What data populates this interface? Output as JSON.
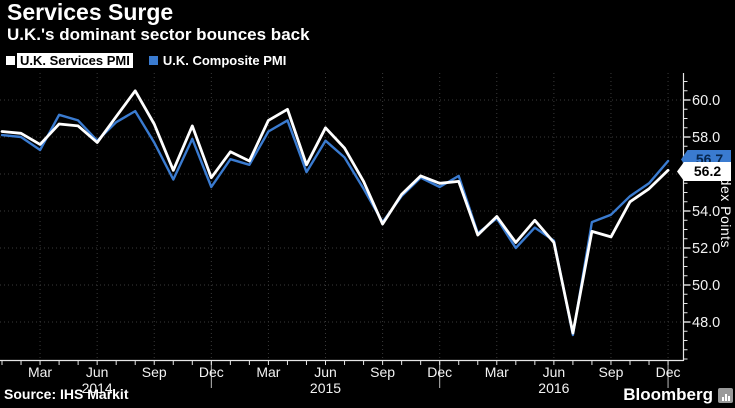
{
  "header": {
    "title": "Services Surge",
    "subtitle": "U.K.'s dominant sector bounces back"
  },
  "legend": {
    "items": [
      {
        "label": "U.K. Services PMI",
        "color": "#ffffff",
        "highlighted": true
      },
      {
        "label": "U.K. Composite PMI",
        "color": "#3a7bd0",
        "highlighted": false
      }
    ]
  },
  "footer": {
    "source": "Source: IHS Markit",
    "brand": "Bloomberg",
    "brand_icon": "bar-chart-icon"
  },
  "chart_data": {
    "type": "line",
    "x": [
      "Jan 2014",
      "Feb 2014",
      "Mar 2014",
      "Apr 2014",
      "May 2014",
      "Jun 2014",
      "Jul 2014",
      "Aug 2014",
      "Sep 2014",
      "Oct 2014",
      "Nov 2014",
      "Dec 2014",
      "Jan 2015",
      "Feb 2015",
      "Mar 2015",
      "Apr 2015",
      "May 2015",
      "Jun 2015",
      "Jul 2015",
      "Aug 2015",
      "Sep 2015",
      "Oct 2015",
      "Nov 2015",
      "Dec 2015",
      "Jan 2016",
      "Feb 2016",
      "Mar 2016",
      "Apr 2016",
      "May 2016",
      "Jun 2016",
      "Jul 2016",
      "Aug 2016",
      "Sep 2016",
      "Oct 2016",
      "Nov 2016",
      "Dec 2016"
    ],
    "series": [
      {
        "name": "U.K. Services PMI",
        "color": "#ffffff",
        "line_width": 2.8,
        "end_value_label": "56.2",
        "values": [
          58.3,
          58.2,
          57.6,
          58.7,
          58.6,
          57.7,
          59.1,
          60.5,
          58.7,
          56.2,
          58.6,
          55.8,
          57.2,
          56.7,
          58.9,
          59.5,
          56.5,
          58.5,
          57.4,
          55.6,
          53.3,
          54.9,
          55.9,
          55.5,
          55.6,
          52.7,
          53.7,
          52.3,
          53.5,
          52.3,
          47.4,
          52.9,
          52.6,
          54.5,
          55.2,
          56.2
        ]
      },
      {
        "name": "U.K. Composite PMI",
        "color": "#3a7bd0",
        "line_width": 2.4,
        "end_value_label": "56.7",
        "values": [
          58.1,
          58.0,
          57.3,
          59.2,
          58.9,
          57.8,
          58.8,
          59.4,
          57.7,
          55.7,
          57.9,
          55.3,
          56.8,
          56.5,
          58.3,
          58.9,
          56.1,
          57.8,
          56.9,
          55.2,
          53.4,
          54.8,
          55.8,
          55.3,
          55.9,
          52.8,
          53.6,
          52.0,
          53.1,
          52.4,
          47.3,
          53.4,
          53.8,
          54.8,
          55.5,
          56.7
        ]
      }
    ],
    "title": "Services Surge",
    "subtitle": "U.K.'s dominant sector bounces back",
    "xlabel": "",
    "ylabel": "Index Points",
    "ylim": [
      45.9,
      61.5
    ],
    "y_ticks": [
      {
        "value": 48,
        "label": "48.0"
      },
      {
        "value": 50,
        "label": "50.0"
      },
      {
        "value": 52,
        "label": "52.0"
      },
      {
        "value": 54,
        "label": "54.0"
      },
      {
        "value": 56,
        "label": "56.0"
      },
      {
        "value": 58,
        "label": "58.0"
      },
      {
        "value": 60,
        "label": "60.0"
      }
    ],
    "y_minor_tick_step": 0.5,
    "x_tick_every_month": true,
    "x_label_months": [
      "Mar",
      "Jun",
      "Sep",
      "Dec"
    ],
    "year_labels": [
      {
        "label": "2014",
        "under_month": "Jun 2014"
      },
      {
        "label": "2015",
        "under_month": "Jun 2015"
      },
      {
        "label": "2016",
        "under_month": "Jun 2016"
      }
    ],
    "grid": {
      "horizontal": true,
      "vertical_quarters": true,
      "style": "dotted",
      "color": "#3a3a3a"
    },
    "legend_position": "top-left",
    "axis_color": "#e6e6e6",
    "background": "#000000"
  }
}
